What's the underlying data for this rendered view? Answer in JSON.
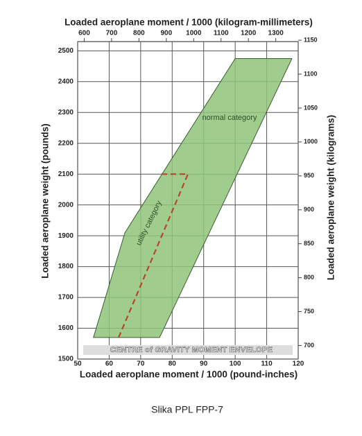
{
  "chart_data": {
    "type": "line",
    "title": "Loaded aeroplane moment / 1000 (kilogram-millimeters)",
    "xlabel": "Loaded aeroplane moment / 1000 (pound-inches)",
    "ylabel": "Loaded aeroplane weight (pounds)",
    "y2label": "Loaded aeroplane weight (kilograms)",
    "annotation": "CENTRE of GRAVITY MOMENT ENVELOPE",
    "caption": "Slika PPL FPP-7",
    "xlim": [
      50,
      120
    ],
    "xticks": [
      50,
      60,
      70,
      80,
      90,
      100,
      110,
      120
    ],
    "x2lim": [
      576,
      1382
    ],
    "x2ticks": [
      600,
      700,
      800,
      900,
      1000,
      1100,
      1200,
      1300
    ],
    "ylim": [
      1500,
      2530
    ],
    "yticks": [
      1500,
      1600,
      1700,
      1800,
      1900,
      2000,
      2100,
      2200,
      2300,
      2400,
      2500
    ],
    "y2lim": [
      680,
      1148
    ],
    "y2ticks": [
      700,
      750,
      800,
      850,
      900,
      950,
      1000,
      1050,
      1100,
      1150
    ],
    "grid": true,
    "series": [
      {
        "name": "normal category",
        "color": "#8fc47a",
        "fill": true,
        "x": [
          55,
          76,
          118,
          100,
          65,
          55
        ],
        "values": [
          1570,
          1570,
          2475,
          2475,
          1910,
          1570
        ]
      },
      {
        "name": "utility category",
        "color": "#b5462a",
        "dashed": true,
        "x": [
          63,
          85,
          76
        ],
        "values": [
          1570,
          2100,
          2100
        ]
      }
    ]
  }
}
